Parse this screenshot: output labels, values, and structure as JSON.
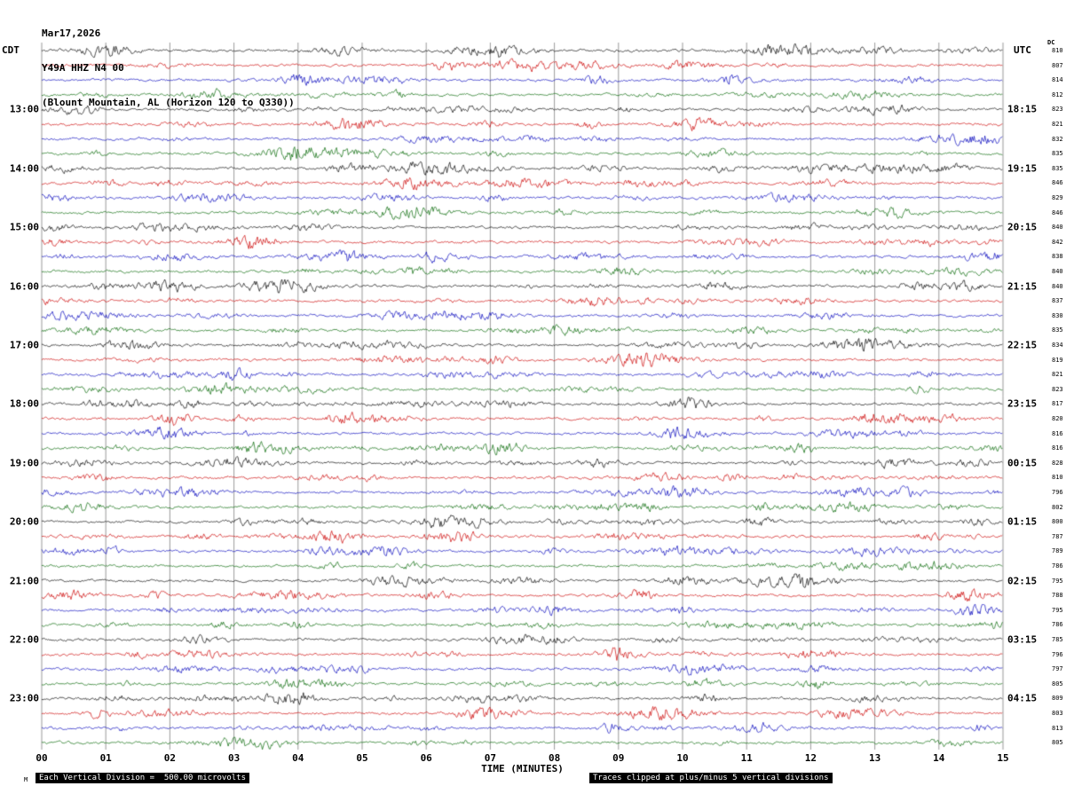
{
  "header": {
    "date": "Mar17,2026",
    "station": "Y49A HHZ N4 00",
    "location": "(Blount Mountain, AL (Horizon 120 to Q330))"
  },
  "axes": {
    "left_label": "CDT",
    "right_label": "UTC",
    "dc_label": "DC",
    "x_title": "TIME (MINUTES)"
  },
  "footer": {
    "left": "Each Vertical Division =  500.00 microvolts",
    "right": "Traces clipped at plus/minus 5 vertical divisions",
    "corner": "M"
  },
  "colors": {
    "black": "#000000",
    "red": "#cc0000",
    "blue": "#0000bb",
    "green": "#006600",
    "grid": "#555555"
  },
  "chart_data": {
    "type": "line",
    "title": "Y49A HHZ N4 00 helicorder (Blount Mountain, AL)",
    "xlabel": "TIME (MINUTES)",
    "x_range": [
      0,
      15
    ],
    "x_ticks": [
      "00",
      "01",
      "02",
      "03",
      "04",
      "05",
      "06",
      "07",
      "08",
      "09",
      "10",
      "11",
      "12",
      "13",
      "14",
      "15"
    ],
    "minutes_per_row": 15,
    "grid": true,
    "trace_color_cycle": [
      "black",
      "red",
      "blue",
      "green"
    ],
    "vertical_division_microvolts": 500.0,
    "clip_divisions": 5,
    "rows": [
      {
        "cdt": "",
        "utc": "",
        "color": "black",
        "dc": 810
      },
      {
        "cdt": "",
        "utc": "",
        "color": "red",
        "dc": 807
      },
      {
        "cdt": "",
        "utc": "",
        "color": "blue",
        "dc": 814
      },
      {
        "cdt": "",
        "utc": "",
        "color": "green",
        "dc": 812
      },
      {
        "cdt": "13:00",
        "utc": "18:15",
        "color": "black",
        "dc": 823
      },
      {
        "cdt": "",
        "utc": "",
        "color": "red",
        "dc": 821
      },
      {
        "cdt": "",
        "utc": "",
        "color": "blue",
        "dc": 832
      },
      {
        "cdt": "",
        "utc": "",
        "color": "green",
        "dc": 835
      },
      {
        "cdt": "14:00",
        "utc": "19:15",
        "color": "black",
        "dc": 835
      },
      {
        "cdt": "",
        "utc": "",
        "color": "red",
        "dc": 846
      },
      {
        "cdt": "",
        "utc": "",
        "color": "blue",
        "dc": 829
      },
      {
        "cdt": "",
        "utc": "",
        "color": "green",
        "dc": 846
      },
      {
        "cdt": "15:00",
        "utc": "20:15",
        "color": "black",
        "dc": 840
      },
      {
        "cdt": "",
        "utc": "",
        "color": "red",
        "dc": 842
      },
      {
        "cdt": "",
        "utc": "",
        "color": "blue",
        "dc": 838
      },
      {
        "cdt": "",
        "utc": "",
        "color": "green",
        "dc": 840
      },
      {
        "cdt": "16:00",
        "utc": "21:15",
        "color": "black",
        "dc": 840
      },
      {
        "cdt": "",
        "utc": "",
        "color": "red",
        "dc": 837
      },
      {
        "cdt": "",
        "utc": "",
        "color": "blue",
        "dc": 830
      },
      {
        "cdt": "",
        "utc": "",
        "color": "green",
        "dc": 835
      },
      {
        "cdt": "17:00",
        "utc": "22:15",
        "color": "black",
        "dc": 834
      },
      {
        "cdt": "",
        "utc": "",
        "color": "red",
        "dc": 819
      },
      {
        "cdt": "",
        "utc": "",
        "color": "blue",
        "dc": 821
      },
      {
        "cdt": "",
        "utc": "",
        "color": "green",
        "dc": 823
      },
      {
        "cdt": "18:00",
        "utc": "23:15",
        "color": "black",
        "dc": 817
      },
      {
        "cdt": "",
        "utc": "",
        "color": "red",
        "dc": 820
      },
      {
        "cdt": "",
        "utc": "",
        "color": "blue",
        "dc": 816
      },
      {
        "cdt": "",
        "utc": "",
        "color": "green",
        "dc": 816
      },
      {
        "cdt": "19:00",
        "utc": "00:15",
        "color": "black",
        "dc": 828
      },
      {
        "cdt": "",
        "utc": "",
        "color": "red",
        "dc": 810
      },
      {
        "cdt": "",
        "utc": "",
        "color": "blue",
        "dc": 796
      },
      {
        "cdt": "",
        "utc": "",
        "color": "green",
        "dc": 802
      },
      {
        "cdt": "20:00",
        "utc": "01:15",
        "color": "black",
        "dc": 800
      },
      {
        "cdt": "",
        "utc": "",
        "color": "red",
        "dc": 787
      },
      {
        "cdt": "",
        "utc": "",
        "color": "blue",
        "dc": 789
      },
      {
        "cdt": "",
        "utc": "",
        "color": "green",
        "dc": 786
      },
      {
        "cdt": "21:00",
        "utc": "02:15",
        "color": "black",
        "dc": 795
      },
      {
        "cdt": "",
        "utc": "",
        "color": "red",
        "dc": 788
      },
      {
        "cdt": "",
        "utc": "",
        "color": "blue",
        "dc": 795
      },
      {
        "cdt": "",
        "utc": "",
        "color": "green",
        "dc": 786
      },
      {
        "cdt": "22:00",
        "utc": "03:15",
        "color": "black",
        "dc": 785
      },
      {
        "cdt": "",
        "utc": "",
        "color": "red",
        "dc": 796
      },
      {
        "cdt": "",
        "utc": "",
        "color": "blue",
        "dc": 797
      },
      {
        "cdt": "",
        "utc": "",
        "color": "green",
        "dc": 805
      },
      {
        "cdt": "23:00",
        "utc": "04:15",
        "color": "black",
        "dc": 809
      },
      {
        "cdt": "",
        "utc": "",
        "color": "red",
        "dc": 803
      },
      {
        "cdt": "",
        "utc": "",
        "color": "blue",
        "dc": 813
      },
      {
        "cdt": "",
        "utc": "",
        "color": "green",
        "dc": 805
      }
    ]
  }
}
